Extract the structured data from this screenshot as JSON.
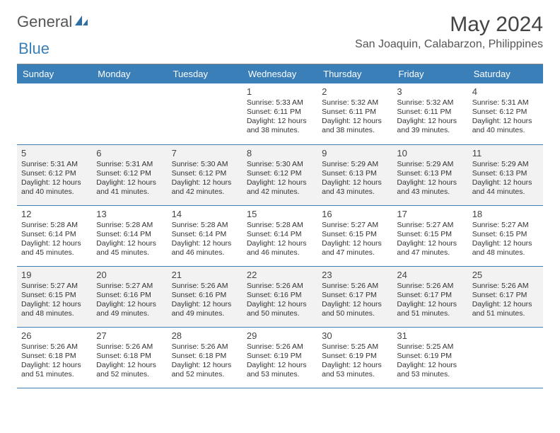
{
  "brand": {
    "part1": "General",
    "part2": "Blue"
  },
  "title": "May 2024",
  "location": "San Joaquin, Calabarzon, Philippines",
  "colors": {
    "header_bg": "#3a7fb8",
    "header_text": "#ffffff",
    "alt_row": "#f2f2f2",
    "rule": "#3a7fb8"
  },
  "dayHeaders": [
    "Sunday",
    "Monday",
    "Tuesday",
    "Wednesday",
    "Thursday",
    "Friday",
    "Saturday"
  ],
  "weeks": [
    [
      null,
      null,
      null,
      {
        "d": "1",
        "sunrise": "5:33 AM",
        "sunset": "6:11 PM",
        "daylight": "12 hours and 38 minutes."
      },
      {
        "d": "2",
        "sunrise": "5:32 AM",
        "sunset": "6:11 PM",
        "daylight": "12 hours and 38 minutes."
      },
      {
        "d": "3",
        "sunrise": "5:32 AM",
        "sunset": "6:11 PM",
        "daylight": "12 hours and 39 minutes."
      },
      {
        "d": "4",
        "sunrise": "5:31 AM",
        "sunset": "6:12 PM",
        "daylight": "12 hours and 40 minutes."
      }
    ],
    [
      {
        "d": "5",
        "sunrise": "5:31 AM",
        "sunset": "6:12 PM",
        "daylight": "12 hours and 40 minutes."
      },
      {
        "d": "6",
        "sunrise": "5:31 AM",
        "sunset": "6:12 PM",
        "daylight": "12 hours and 41 minutes."
      },
      {
        "d": "7",
        "sunrise": "5:30 AM",
        "sunset": "6:12 PM",
        "daylight": "12 hours and 42 minutes."
      },
      {
        "d": "8",
        "sunrise": "5:30 AM",
        "sunset": "6:12 PM",
        "daylight": "12 hours and 42 minutes."
      },
      {
        "d": "9",
        "sunrise": "5:29 AM",
        "sunset": "6:13 PM",
        "daylight": "12 hours and 43 minutes."
      },
      {
        "d": "10",
        "sunrise": "5:29 AM",
        "sunset": "6:13 PM",
        "daylight": "12 hours and 43 minutes."
      },
      {
        "d": "11",
        "sunrise": "5:29 AM",
        "sunset": "6:13 PM",
        "daylight": "12 hours and 44 minutes."
      }
    ],
    [
      {
        "d": "12",
        "sunrise": "5:28 AM",
        "sunset": "6:14 PM",
        "daylight": "12 hours and 45 minutes."
      },
      {
        "d": "13",
        "sunrise": "5:28 AM",
        "sunset": "6:14 PM",
        "daylight": "12 hours and 45 minutes."
      },
      {
        "d": "14",
        "sunrise": "5:28 AM",
        "sunset": "6:14 PM",
        "daylight": "12 hours and 46 minutes."
      },
      {
        "d": "15",
        "sunrise": "5:28 AM",
        "sunset": "6:14 PM",
        "daylight": "12 hours and 46 minutes."
      },
      {
        "d": "16",
        "sunrise": "5:27 AM",
        "sunset": "6:15 PM",
        "daylight": "12 hours and 47 minutes."
      },
      {
        "d": "17",
        "sunrise": "5:27 AM",
        "sunset": "6:15 PM",
        "daylight": "12 hours and 47 minutes."
      },
      {
        "d": "18",
        "sunrise": "5:27 AM",
        "sunset": "6:15 PM",
        "daylight": "12 hours and 48 minutes."
      }
    ],
    [
      {
        "d": "19",
        "sunrise": "5:27 AM",
        "sunset": "6:15 PM",
        "daylight": "12 hours and 48 minutes."
      },
      {
        "d": "20",
        "sunrise": "5:27 AM",
        "sunset": "6:16 PM",
        "daylight": "12 hours and 49 minutes."
      },
      {
        "d": "21",
        "sunrise": "5:26 AM",
        "sunset": "6:16 PM",
        "daylight": "12 hours and 49 minutes."
      },
      {
        "d": "22",
        "sunrise": "5:26 AM",
        "sunset": "6:16 PM",
        "daylight": "12 hours and 50 minutes."
      },
      {
        "d": "23",
        "sunrise": "5:26 AM",
        "sunset": "6:17 PM",
        "daylight": "12 hours and 50 minutes."
      },
      {
        "d": "24",
        "sunrise": "5:26 AM",
        "sunset": "6:17 PM",
        "daylight": "12 hours and 51 minutes."
      },
      {
        "d": "25",
        "sunrise": "5:26 AM",
        "sunset": "6:17 PM",
        "daylight": "12 hours and 51 minutes."
      }
    ],
    [
      {
        "d": "26",
        "sunrise": "5:26 AM",
        "sunset": "6:18 PM",
        "daylight": "12 hours and 51 minutes."
      },
      {
        "d": "27",
        "sunrise": "5:26 AM",
        "sunset": "6:18 PM",
        "daylight": "12 hours and 52 minutes."
      },
      {
        "d": "28",
        "sunrise": "5:26 AM",
        "sunset": "6:18 PM",
        "daylight": "12 hours and 52 minutes."
      },
      {
        "d": "29",
        "sunrise": "5:26 AM",
        "sunset": "6:19 PM",
        "daylight": "12 hours and 53 minutes."
      },
      {
        "d": "30",
        "sunrise": "5:25 AM",
        "sunset": "6:19 PM",
        "daylight": "12 hours and 53 minutes."
      },
      {
        "d": "31",
        "sunrise": "5:25 AM",
        "sunset": "6:19 PM",
        "daylight": "12 hours and 53 minutes."
      },
      null
    ]
  ],
  "labels": {
    "sunrise": "Sunrise:",
    "sunset": "Sunset:",
    "daylight": "Daylight:"
  }
}
